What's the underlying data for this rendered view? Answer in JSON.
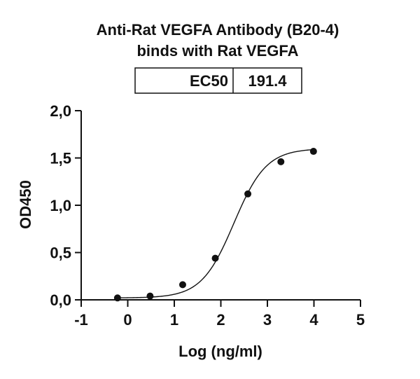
{
  "chart_data": {
    "type": "scatter",
    "title": "Anti-Rat VEGFA Antibody (B20-4)",
    "subtitle": "binds with Rat VEGFA",
    "xlabel": "Log (ng/ml)",
    "ylabel": "OD450",
    "xlim": [
      -1,
      5
    ],
    "ylim": [
      0,
      2
    ],
    "x_ticks": [
      "-1",
      "0",
      "1",
      "2",
      "3",
      "4",
      "5"
    ],
    "y_ticks": [
      "0,0",
      "0,5",
      "1,0",
      "1,5",
      "2,0"
    ],
    "grid": false,
    "table": {
      "header": "EC50",
      "value": "191.4"
    },
    "series": [
      {
        "x": [
          -0.22,
          0.48,
          1.18,
          1.88,
          2.58,
          3.29,
          3.99
        ],
        "y": [
          0.02,
          0.04,
          0.16,
          0.44,
          1.12,
          1.46,
          1.57
        ],
        "fit": "4PL",
        "color": "#111111"
      }
    ]
  }
}
